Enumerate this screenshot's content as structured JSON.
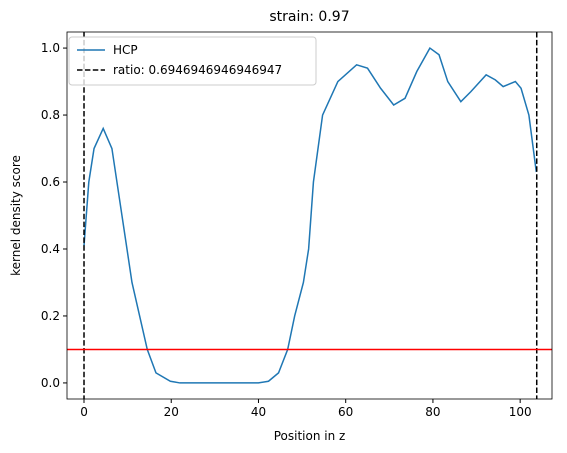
{
  "chart_data": {
    "type": "line",
    "title": "strain: 0.97",
    "xlabel": "Position in z",
    "ylabel": "kernel density score",
    "x": [
      0,
      1.1,
      2.3,
      4.4,
      6.4,
      8.7,
      11,
      14.5,
      16.5,
      19.8,
      22,
      40,
      42.3,
      44.6,
      46.7,
      48.3,
      50.3,
      51.5,
      52.6,
      54.7,
      58.2,
      62.5,
      65,
      68,
      71,
      73.6,
      76.3,
      79.3,
      81.4,
      83.4,
      86.4,
      88.7,
      92.2,
      94.3,
      96.1,
      98.9,
      100.2,
      102,
      103.7
    ],
    "series": [
      {
        "name": "HCP",
        "color": "#1f77b4",
        "values": [
          0.41,
          0.6,
          0.7,
          0.76,
          0.7,
          0.5,
          0.3,
          0.1,
          0.03,
          0.005,
          0,
          0,
          0.005,
          0.03,
          0.1,
          0.2,
          0.3,
          0.4,
          0.6,
          0.8,
          0.9,
          0.95,
          0.94,
          0.88,
          0.83,
          0.85,
          0.93,
          1.0,
          0.98,
          0.9,
          0.84,
          0.87,
          0.92,
          0.905,
          0.885,
          0.9,
          0.88,
          0.8,
          0.63
        ]
      }
    ],
    "vlines": {
      "name": "ratio: 0.6946946946946947",
      "color": "#000000",
      "x": [
        0,
        103.8
      ]
    },
    "hline": {
      "y": 0.1,
      "color": "#ff0000"
    },
    "xlim": [
      -3.9,
      107.3
    ],
    "ylim": [
      -0.048,
      1.048
    ],
    "xticks": [
      0,
      20,
      40,
      60,
      80,
      100
    ],
    "yticks": [
      {
        "value": 0,
        "label": "0.0"
      },
      {
        "value": 0.2,
        "label": "0.2"
      },
      {
        "value": 0.4,
        "label": "0.4"
      },
      {
        "value": 0.6,
        "label": "0.6"
      },
      {
        "value": 0.8,
        "label": "0.8"
      },
      {
        "value": 1.0,
        "label": "1.0"
      }
    ],
    "legend": "upper left"
  }
}
